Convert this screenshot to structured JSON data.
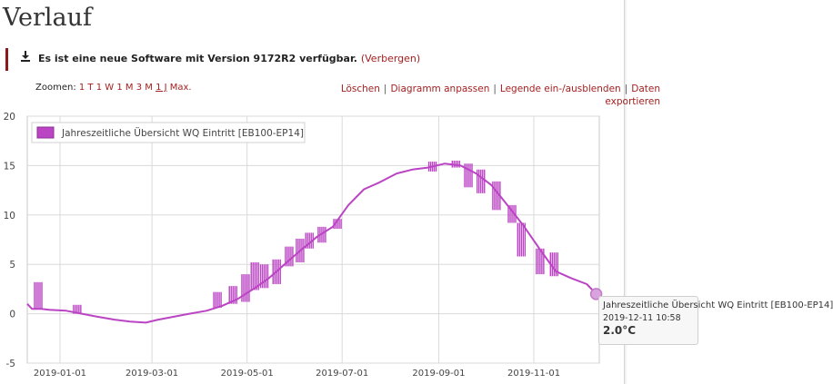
{
  "page": {
    "title": "Verlauf"
  },
  "notice": {
    "icon": "download-icon",
    "message": "Es ist eine neue Software mit Version 9172R2 verfügbar.",
    "hide_link": "(Verbergen)"
  },
  "zoom": {
    "label": "Zoomen:",
    "options": [
      "1 T",
      "1 W",
      "1 M",
      "3 M",
      "1 J",
      "Max."
    ],
    "active": "1 J"
  },
  "actions": [
    "Löschen",
    "Diagramm anpassen",
    "Legende ein-/ausblenden",
    "Daten exportieren"
  ],
  "colors": {
    "series": "#bb44c4",
    "link": "#a31f1f",
    "notice_border": "#8b1a1a"
  },
  "chart_data": {
    "type": "line",
    "title": "",
    "xlabel": "",
    "ylabel": "",
    "ylim": [
      -5,
      20
    ],
    "yticks": [
      -5,
      0,
      5,
      10,
      15,
      20
    ],
    "xlim": [
      "2018-12-11",
      "2019-12-13"
    ],
    "xticks": [
      "2019-01-01",
      "2019-03-01",
      "2019-05-01",
      "2019-07-01",
      "2019-09-01",
      "2019-11-01"
    ],
    "grid": true,
    "legend": {
      "position": "top-left",
      "entries": [
        "Jahreszeitliche Übersicht WQ Eintritt [EB100-EP14]"
      ]
    },
    "series": [
      {
        "name": "Jahreszeitliche Übersicht WQ Eintritt [EB100-EP14]",
        "color": "#bb44c4",
        "x": [
          "2018-12-11",
          "2018-12-14",
          "2018-12-20",
          "2018-12-25",
          "2019-01-05",
          "2019-01-15",
          "2019-01-25",
          "2019-02-05",
          "2019-02-15",
          "2019-02-25",
          "2019-03-05",
          "2019-03-15",
          "2019-03-25",
          "2019-04-05",
          "2019-04-15",
          "2019-04-25",
          "2019-05-05",
          "2019-05-15",
          "2019-05-25",
          "2019-06-05",
          "2019-06-15",
          "2019-06-25",
          "2019-07-05",
          "2019-07-15",
          "2019-07-25",
          "2019-08-05",
          "2019-08-15",
          "2019-08-25",
          "2019-09-05",
          "2019-09-15",
          "2019-09-25",
          "2019-10-05",
          "2019-10-15",
          "2019-10-25",
          "2019-11-05",
          "2019-11-15",
          "2019-11-25",
          "2019-12-05",
          "2019-12-11"
        ],
        "y": [
          1.0,
          0.5,
          0.5,
          0.4,
          0.3,
          0.0,
          -0.3,
          -0.6,
          -0.8,
          -0.9,
          -0.6,
          -0.3,
          0.0,
          0.3,
          0.8,
          1.5,
          2.5,
          3.6,
          5.0,
          6.5,
          7.8,
          8.8,
          11.0,
          12.6,
          13.3,
          14.2,
          14.6,
          14.8,
          15.2,
          15.0,
          14.2,
          13.0,
          11.0,
          9.0,
          6.5,
          4.3,
          3.6,
          3.0,
          2.0
        ],
        "spikes": [
          {
            "x": "2018-12-18",
            "from": 0.5,
            "to": 3.2
          },
          {
            "x": "2019-01-12",
            "from": 0.0,
            "to": 0.9
          },
          {
            "x": "2019-04-12",
            "from": 0.6,
            "to": 2.2
          },
          {
            "x": "2019-04-22",
            "from": 1.0,
            "to": 2.8
          },
          {
            "x": "2019-04-30",
            "from": 1.2,
            "to": 4.0
          },
          {
            "x": "2019-05-06",
            "from": 2.4,
            "to": 5.2
          },
          {
            "x": "2019-05-12",
            "from": 2.6,
            "to": 5.0
          },
          {
            "x": "2019-05-20",
            "from": 3.0,
            "to": 5.5
          },
          {
            "x": "2019-05-28",
            "from": 4.8,
            "to": 6.8
          },
          {
            "x": "2019-06-04",
            "from": 5.2,
            "to": 7.6
          },
          {
            "x": "2019-06-10",
            "from": 6.6,
            "to": 8.2
          },
          {
            "x": "2019-06-18",
            "from": 7.2,
            "to": 8.8
          },
          {
            "x": "2019-06-28",
            "from": 8.6,
            "to": 9.6
          },
          {
            "x": "2019-08-28",
            "from": 14.4,
            "to": 15.4
          },
          {
            "x": "2019-09-12",
            "from": 14.8,
            "to": 15.5
          },
          {
            "x": "2019-09-20",
            "from": 12.8,
            "to": 15.2
          },
          {
            "x": "2019-09-28",
            "from": 12.2,
            "to": 14.6
          },
          {
            "x": "2019-10-08",
            "from": 10.5,
            "to": 13.4
          },
          {
            "x": "2019-10-18",
            "from": 9.2,
            "to": 11.0
          },
          {
            "x": "2019-10-24",
            "from": 5.8,
            "to": 9.2
          },
          {
            "x": "2019-11-05",
            "from": 4.0,
            "to": 6.6
          },
          {
            "x": "2019-11-14",
            "from": 3.8,
            "to": 6.2
          }
        ]
      }
    ],
    "tooltip": {
      "series": "Jahreszeitliche Übersicht WQ Eintritt [EB100-EP14]",
      "date": "2019-12-11 10:58",
      "value": "2.0°C",
      "x": "2019-12-11",
      "y": 2.0
    }
  }
}
